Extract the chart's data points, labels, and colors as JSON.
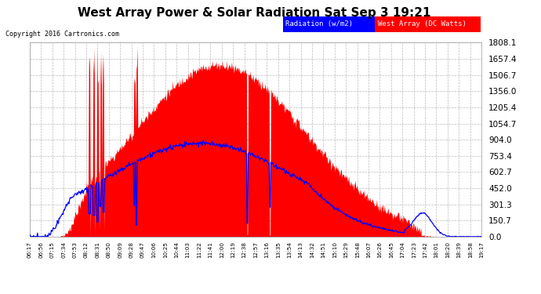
{
  "title": "West Array Power & Solar Radiation Sat Sep 3 19:21",
  "copyright": "Copyright 2016 Cartronics.com",
  "legend_radiation": "Radiation (w/m2)",
  "legend_west": "West Array (DC Watts)",
  "bg_color": "#ffffff",
  "plot_bg": "#ffffff",
  "radiation_color": "#0000ff",
  "west_color": "#ff0000",
  "grid_color": "#aaaaaa",
  "ymax": 1808.1,
  "yticks": [
    0.0,
    150.7,
    301.3,
    452.0,
    602.7,
    753.4,
    904.0,
    1054.7,
    1205.4,
    1356.0,
    1506.7,
    1657.4,
    1808.1
  ],
  "xtick_labels": [
    "06:17",
    "06:56",
    "07:15",
    "07:34",
    "07:53",
    "08:12",
    "08:31",
    "08:50",
    "09:09",
    "09:28",
    "09:47",
    "10:06",
    "10:25",
    "10:44",
    "11:03",
    "11:22",
    "11:41",
    "12:00",
    "12:19",
    "12:38",
    "12:57",
    "13:16",
    "13:35",
    "13:54",
    "14:13",
    "14:32",
    "14:51",
    "15:10",
    "15:29",
    "15:48",
    "16:07",
    "16:26",
    "16:45",
    "17:04",
    "17:23",
    "17:42",
    "18:01",
    "18:20",
    "18:39",
    "18:58",
    "19:17"
  ],
  "n_points": 820
}
